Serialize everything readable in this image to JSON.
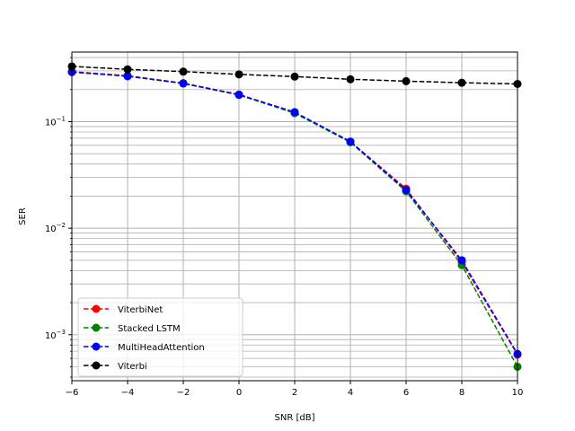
{
  "chart_data": {
    "type": "line",
    "xlabel": "SNR [dB]",
    "ylabel": "SER",
    "xlim": [
      -6,
      10
    ],
    "ylim": [
      0.00037,
      0.45
    ],
    "yscale": "log",
    "grid": "both (major and minor)",
    "legend_position": "lower-left",
    "x": [
      -6,
      -4,
      -2,
      0,
      2,
      4,
      6,
      8,
      10
    ],
    "x_ticks": [
      -6,
      -4,
      -2,
      0,
      2,
      4,
      6,
      8,
      10
    ],
    "x_tick_labels": [
      "−6",
      "−4",
      "−2",
      "0",
      "2",
      "4",
      "6",
      "8",
      "10"
    ],
    "y_ticks": [
      0.001,
      0.01,
      0.1
    ],
    "y_tick_labels": [
      {
        "base": "10",
        "exp": "−3"
      },
      {
        "base": "10",
        "exp": "−2"
      },
      {
        "base": "10",
        "exp": "−1"
      }
    ],
    "series": [
      {
        "name": "ViterbiNet",
        "color": "#ff0000",
        "values": [
          0.295,
          0.27,
          0.23,
          0.18,
          0.122,
          0.065,
          0.0235,
          0.0048,
          0.00065
        ]
      },
      {
        "name": "Stacked LSTM",
        "color": "#008000",
        "values": [
          0.293,
          0.268,
          0.228,
          0.178,
          0.12,
          0.064,
          0.0222,
          0.0045,
          0.0005
        ]
      },
      {
        "name": "MultiHeadAttention",
        "color": "#0000ff",
        "values": [
          0.292,
          0.267,
          0.229,
          0.179,
          0.123,
          0.065,
          0.0228,
          0.005,
          0.00066
        ]
      },
      {
        "name": "Viterbi",
        "color": "#000000",
        "values": [
          0.33,
          0.31,
          0.295,
          0.278,
          0.265,
          0.25,
          0.24,
          0.232,
          0.226
        ]
      }
    ]
  }
}
